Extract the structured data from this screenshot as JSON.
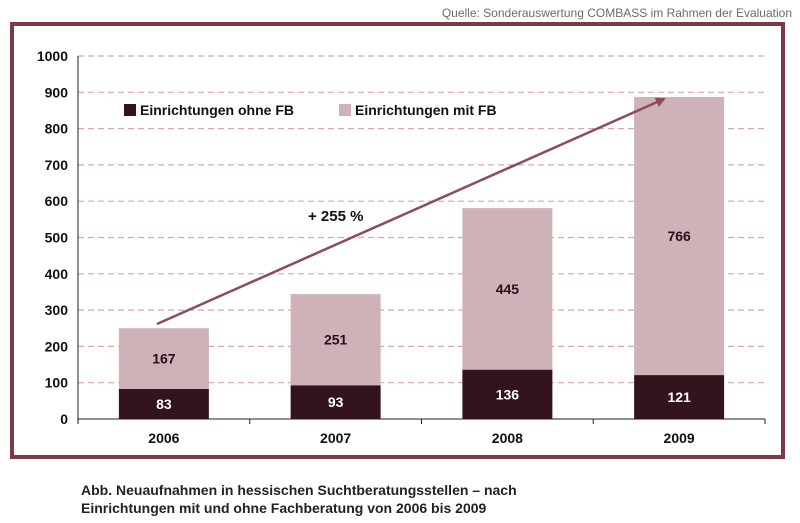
{
  "source_text": "Quelle: Sonderauswertung COMBASS im Rahmen der Evaluation",
  "caption_lines": [
    "Abb. Neuaufnahmen in hessischen Suchtberatungsstellen – nach",
    "Einrichtungen mit und ohne Fachberatung von 2006 bis 2009"
  ],
  "annotation": "+ 255 %",
  "colors": {
    "frame": "#7a3b47",
    "ohne_fb": "#33141c",
    "mit_fb": "#cfb1b8",
    "arrow": "#8b4d5b",
    "grid": "#d9a6ae"
  },
  "chart_data": {
    "type": "bar",
    "stacked": true,
    "categories": [
      "2006",
      "2007",
      "2008",
      "2009"
    ],
    "series": [
      {
        "name": "Einrichtungen ohne FB",
        "values": [
          83,
          93,
          136,
          121
        ]
      },
      {
        "name": "Einrichtungen mit FB",
        "values": [
          167,
          251,
          445,
          766
        ]
      }
    ],
    "yticks": [
      "0",
      "100",
      "200",
      "300",
      "400",
      "500",
      "600",
      "700",
      "800",
      "900",
      "1000"
    ],
    "ylim": [
      0,
      1000
    ],
    "grid": true,
    "legend_position": "top-left",
    "title": "",
    "xlabel": "",
    "ylabel": ""
  }
}
